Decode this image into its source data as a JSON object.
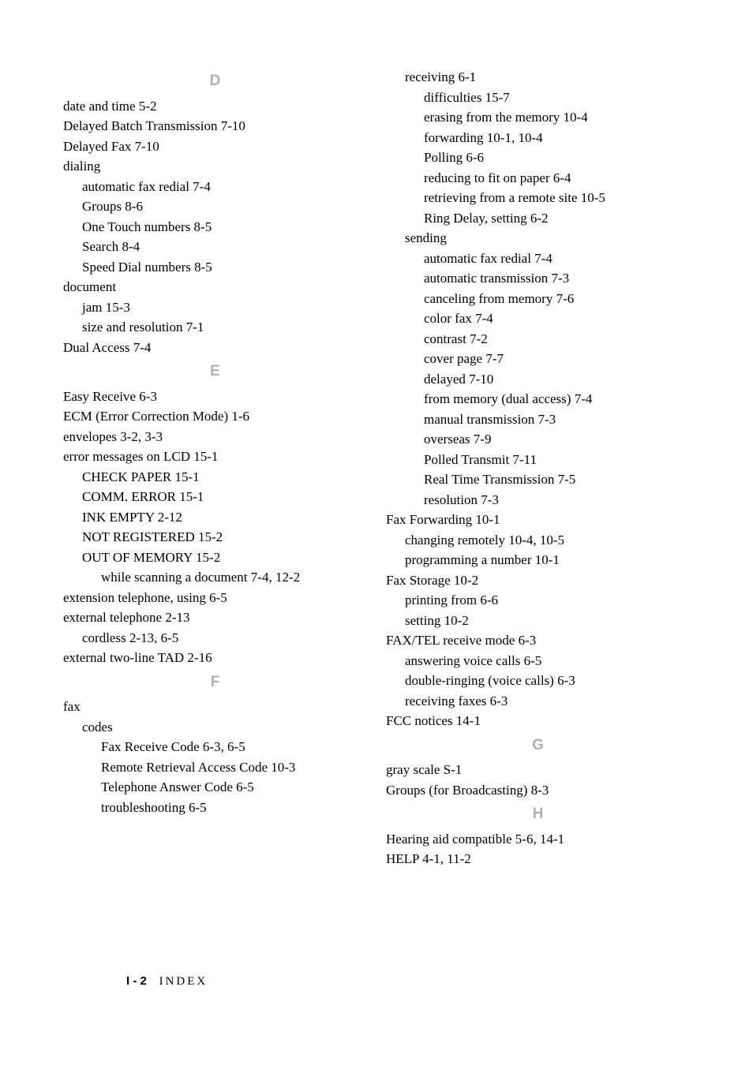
{
  "footer": {
    "page": "I - 2",
    "label": "INDEX"
  },
  "left": {
    "sections": [
      {
        "letter": "D",
        "items": [
          {
            "text": "date and time 5-2",
            "indent": 0
          },
          {
            "text": "Delayed Batch Transmission 7-10",
            "indent": 0
          },
          {
            "text": "Delayed Fax 7-10",
            "indent": 0
          },
          {
            "text": "dialing",
            "indent": 0
          },
          {
            "text": "automatic fax redial 7-4",
            "indent": 1
          },
          {
            "text": "Groups 8-6",
            "indent": 1
          },
          {
            "text": "One Touch numbers 8-5",
            "indent": 1
          },
          {
            "text": "Search 8-4",
            "indent": 1
          },
          {
            "text": "Speed Dial numbers 8-5",
            "indent": 1
          },
          {
            "text": "document",
            "indent": 0
          },
          {
            "text": "jam 15-3",
            "indent": 1
          },
          {
            "text": "size and resolution 7-1",
            "indent": 1
          },
          {
            "text": "Dual Access 7-4",
            "indent": 0
          }
        ]
      },
      {
        "letter": "E",
        "items": [
          {
            "text": "Easy Receive 6-3",
            "indent": 0
          },
          {
            "text": "ECM (Error Correction Mode) 1-6",
            "indent": 0
          },
          {
            "text": "envelopes 3-2, 3-3",
            "indent": 0
          },
          {
            "text": "error messages on LCD 15-1",
            "indent": 0
          },
          {
            "text": "CHECK PAPER 15-1",
            "indent": 1
          },
          {
            "text": "COMM. ERROR 15-1",
            "indent": 1
          },
          {
            "text": "INK EMPTY 2-12",
            "indent": 1
          },
          {
            "text": "NOT REGISTERED 15-2",
            "indent": 1
          },
          {
            "text": "OUT OF MEMORY 15-2",
            "indent": 1
          },
          {
            "text": "while scanning a document 7-4, 12-2",
            "indent": 2
          },
          {
            "text": "extension telephone, using 6-5",
            "indent": 0
          },
          {
            "text": "external telephone 2-13",
            "indent": 0
          },
          {
            "text": "cordless 2-13, 6-5",
            "indent": 1
          },
          {
            "text": "external two-line TAD 2-16",
            "indent": 0
          }
        ]
      },
      {
        "letter": "F",
        "items": [
          {
            "text": "fax",
            "indent": 0
          },
          {
            "text": "codes",
            "indent": 1
          },
          {
            "text": "Fax Receive Code 6-3, 6-5",
            "indent": 2
          },
          {
            "text": "Remote Retrieval Access Code 10-3",
            "indent": 2
          },
          {
            "text": "Telephone Answer Code 6-5",
            "indent": 2
          },
          {
            "text": "troubleshooting 6-5",
            "indent": 2
          }
        ]
      }
    ]
  },
  "right": {
    "sections": [
      {
        "letter": "",
        "items": [
          {
            "text": "receiving 6-1",
            "indent": 1
          },
          {
            "text": "difficulties 15-7",
            "indent": 2
          },
          {
            "text": "erasing from the memory 10-4",
            "indent": 2
          },
          {
            "text": "forwarding 10-1, 10-4",
            "indent": 2
          },
          {
            "text": "Polling 6-6",
            "indent": 2
          },
          {
            "text": "reducing to fit on paper 6-4",
            "indent": 2
          },
          {
            "text": "retrieving from a remote site 10-5",
            "indent": 2
          },
          {
            "text": "Ring Delay, setting 6-2",
            "indent": 2
          },
          {
            "text": "sending",
            "indent": 1
          },
          {
            "text": "automatic fax redial 7-4",
            "indent": 2
          },
          {
            "text": "automatic transmission 7-3",
            "indent": 2
          },
          {
            "text": "canceling from memory 7-6",
            "indent": 2
          },
          {
            "text": "color fax 7-4",
            "indent": 2
          },
          {
            "text": "contrast 7-2",
            "indent": 2
          },
          {
            "text": "cover page 7-7",
            "indent": 2
          },
          {
            "text": "delayed 7-10",
            "indent": 2
          },
          {
            "text": "from memory (dual access) 7-4",
            "indent": 2
          },
          {
            "text": "manual transmission 7-3",
            "indent": 2
          },
          {
            "text": "overseas 7-9",
            "indent": 2
          },
          {
            "text": "Polled Transmit 7-11",
            "indent": 2
          },
          {
            "text": "Real Time Transmission 7-5",
            "indent": 2
          },
          {
            "text": "resolution 7-3",
            "indent": 2
          },
          {
            "text": "Fax Forwarding 10-1",
            "indent": 0
          },
          {
            "text": "changing remotely 10-4, 10-5",
            "indent": 1
          },
          {
            "text": "programming a number 10-1",
            "indent": 1
          },
          {
            "text": "Fax Storage 10-2",
            "indent": 0
          },
          {
            "text": "printing from 6-6",
            "indent": 1
          },
          {
            "text": "setting 10-2",
            "indent": 1
          },
          {
            "text": "FAX/TEL receive mode 6-3",
            "indent": 0
          },
          {
            "text": "answering voice calls 6-5",
            "indent": 1
          },
          {
            "text": "double-ringing (voice calls) 6-3",
            "indent": 1
          },
          {
            "text": "receiving faxes 6-3",
            "indent": 1
          },
          {
            "text": "FCC notices 14-1",
            "indent": 0
          }
        ]
      },
      {
        "letter": "G",
        "items": [
          {
            "text": "gray scale S-1",
            "indent": 0
          },
          {
            "text": "Groups (for Broadcasting) 8-3",
            "indent": 0
          }
        ]
      },
      {
        "letter": "H",
        "items": [
          {
            "text": "Hearing aid compatible 5-6, 14-1",
            "indent": 0
          },
          {
            "text": "HELP 4-1, 11-2",
            "indent": 0
          }
        ]
      }
    ]
  }
}
